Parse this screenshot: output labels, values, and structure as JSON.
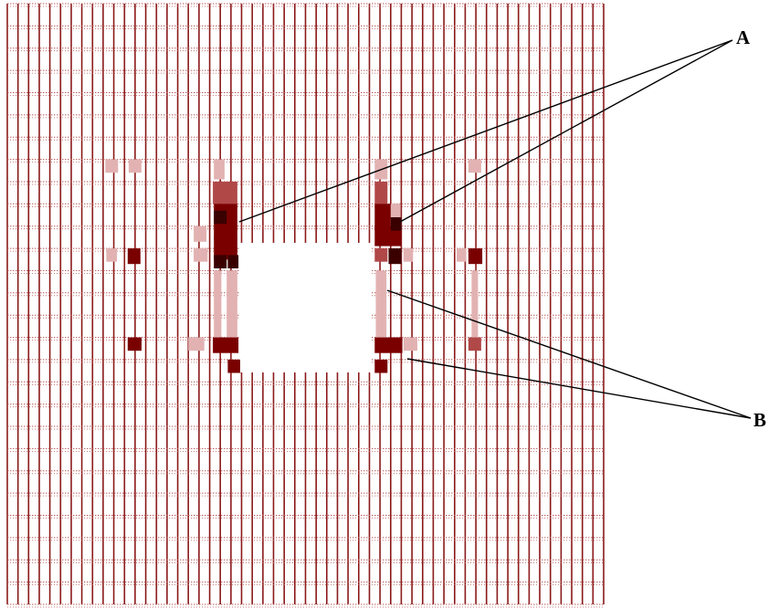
{
  "figure": {
    "labels": {
      "a": "A",
      "b": "B"
    },
    "colors": {
      "grid_line": "#8b1a1a",
      "grid_line_light": "#b85a5a",
      "cell_dark": "#7a0000",
      "cell_darkest": "#3a0000",
      "cell_mid": "#b04848",
      "cell_light": "#e2b2b2",
      "background": "#ffffff",
      "leader_line": "#000000"
    },
    "grid": {
      "columns": 56,
      "rows": 27
    },
    "cutout": {
      "col_start": 22,
      "col_end": 35,
      "row_start": 11,
      "row_end": 17
    }
  }
}
